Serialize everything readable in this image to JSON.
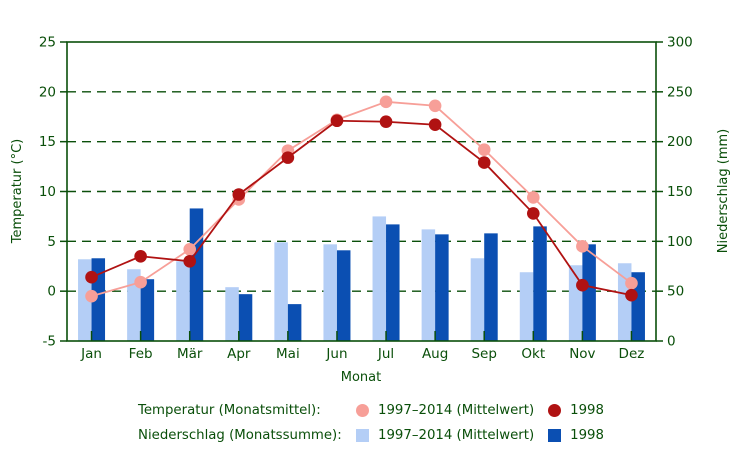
{
  "chart_data": {
    "type": "bar+line",
    "categories": [
      "Jan",
      "Feb",
      "Mär",
      "Apr",
      "Mai",
      "Jun",
      "Jul",
      "Aug",
      "Sep",
      "Okt",
      "Nov",
      "Dez"
    ],
    "series": [
      {
        "name": "Temperatur 1997–2014 (Mittelwert)",
        "type": "line",
        "axis": "left",
        "color": "#f79f98",
        "values": [
          -0.5,
          0.9,
          4.2,
          9.2,
          14.1,
          17.2,
          19.0,
          18.6,
          14.2,
          9.4,
          4.5,
          0.8
        ]
      },
      {
        "name": "Temperatur 1998",
        "type": "line",
        "axis": "left",
        "color": "#b01212",
        "values": [
          1.4,
          3.5,
          3.0,
          9.7,
          13.4,
          17.1,
          17.0,
          16.7,
          12.9,
          7.8,
          0.6,
          -0.4
        ]
      },
      {
        "name": "Niederschlag 1997–2014 (Mittelwert)",
        "type": "bar",
        "axis": "right",
        "color": "#b4cef6",
        "values": [
          82,
          72,
          80,
          54,
          99,
          97,
          125,
          112,
          83,
          69,
          76,
          78
        ]
      },
      {
        "name": "Niederschlag 1998",
        "type": "bar",
        "axis": "right",
        "color": "#0b4fb2",
        "values": [
          83,
          62,
          133,
          47,
          37,
          91,
          117,
          107,
          108,
          115,
          97,
          69
        ]
      }
    ],
    "left_axis": {
      "label": "Temperatur (°C)",
      "min": -5,
      "max": 25,
      "ticks": [
        -5,
        0,
        5,
        10,
        15,
        20,
        25
      ]
    },
    "right_axis": {
      "label": "Niederschlag (mm)",
      "min": 0,
      "max": 300,
      "ticks": [
        0,
        50,
        100,
        150,
        200,
        250,
        300
      ]
    },
    "x_axis": {
      "label": "Monat"
    },
    "grid": {
      "dashed": true,
      "left_values": [
        0,
        5,
        10,
        15,
        20
      ],
      "color": "#0a4f0a"
    },
    "frame_color": "#0a4f0a",
    "text_color": "#0a4f0a",
    "background": "#ffffff",
    "legend_position": "bottom"
  },
  "legend": {
    "row1_label": "Temperatur (Monatsmittel):",
    "row1_items": [
      {
        "marker": "circle",
        "color": "#f79f98",
        "label": "1997–2014 (Mittelwert)"
      },
      {
        "marker": "circle",
        "color": "#b01212",
        "label": "1998"
      }
    ],
    "row2_label": "Niederschlag (Monatssumme):",
    "row2_items": [
      {
        "marker": "square",
        "color": "#b4cef6",
        "label": "1997–2014 (Mittelwert)"
      },
      {
        "marker": "square",
        "color": "#0b4fb2",
        "label": "1998"
      }
    ]
  }
}
